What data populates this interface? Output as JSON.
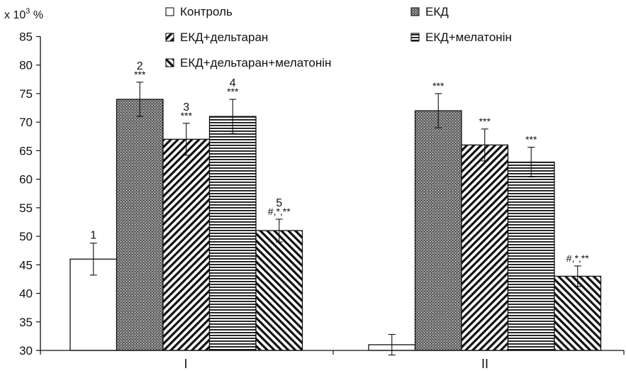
{
  "chart_data": {
    "type": "bar",
    "ylabel_base": "x 10",
    "ylabel_exp": "3",
    "ylabel_unit": " %",
    "ylim": [
      30,
      85
    ],
    "yticks": [
      "30",
      "35",
      "40",
      "45",
      "50",
      "55",
      "60",
      "65",
      "70",
      "75",
      "80",
      "85"
    ],
    "categories": [
      "I",
      "II"
    ],
    "grid": false,
    "legend_position": "top",
    "series": [
      {
        "name": "Контроль",
        "pattern": "white",
        "values": [
          46,
          31
        ],
        "errors": [
          2.8,
          1.8
        ],
        "annotations": [
          "",
          ""
        ],
        "numbers": [
          "1",
          ""
        ]
      },
      {
        "name": "ЕКД",
        "pattern": "dots",
        "values": [
          74,
          72
        ],
        "errors": [
          3.0,
          3.0
        ],
        "annotations": [
          "***",
          "***"
        ],
        "numbers": [
          "2",
          ""
        ]
      },
      {
        "name": "ЕКД+дельтаран",
        "pattern": "diag-right",
        "values": [
          67,
          66
        ],
        "errors": [
          2.8,
          2.8
        ],
        "annotations": [
          "***",
          "***"
        ],
        "numbers": [
          "3",
          ""
        ]
      },
      {
        "name": "ЕКД+мелатонін",
        "pattern": "horizontal",
        "values": [
          71,
          63
        ],
        "errors": [
          3.0,
          2.6
        ],
        "annotations": [
          "***",
          "***"
        ],
        "numbers": [
          "4",
          ""
        ]
      },
      {
        "name": "ЕКД+дельтаран+мелатонін",
        "pattern": "diag-left",
        "values": [
          51,
          43
        ],
        "errors": [
          2.0,
          1.8
        ],
        "annotations": [
          "#,*,**",
          "#,*,**"
        ],
        "numbers": [
          "5",
          ""
        ]
      }
    ]
  }
}
